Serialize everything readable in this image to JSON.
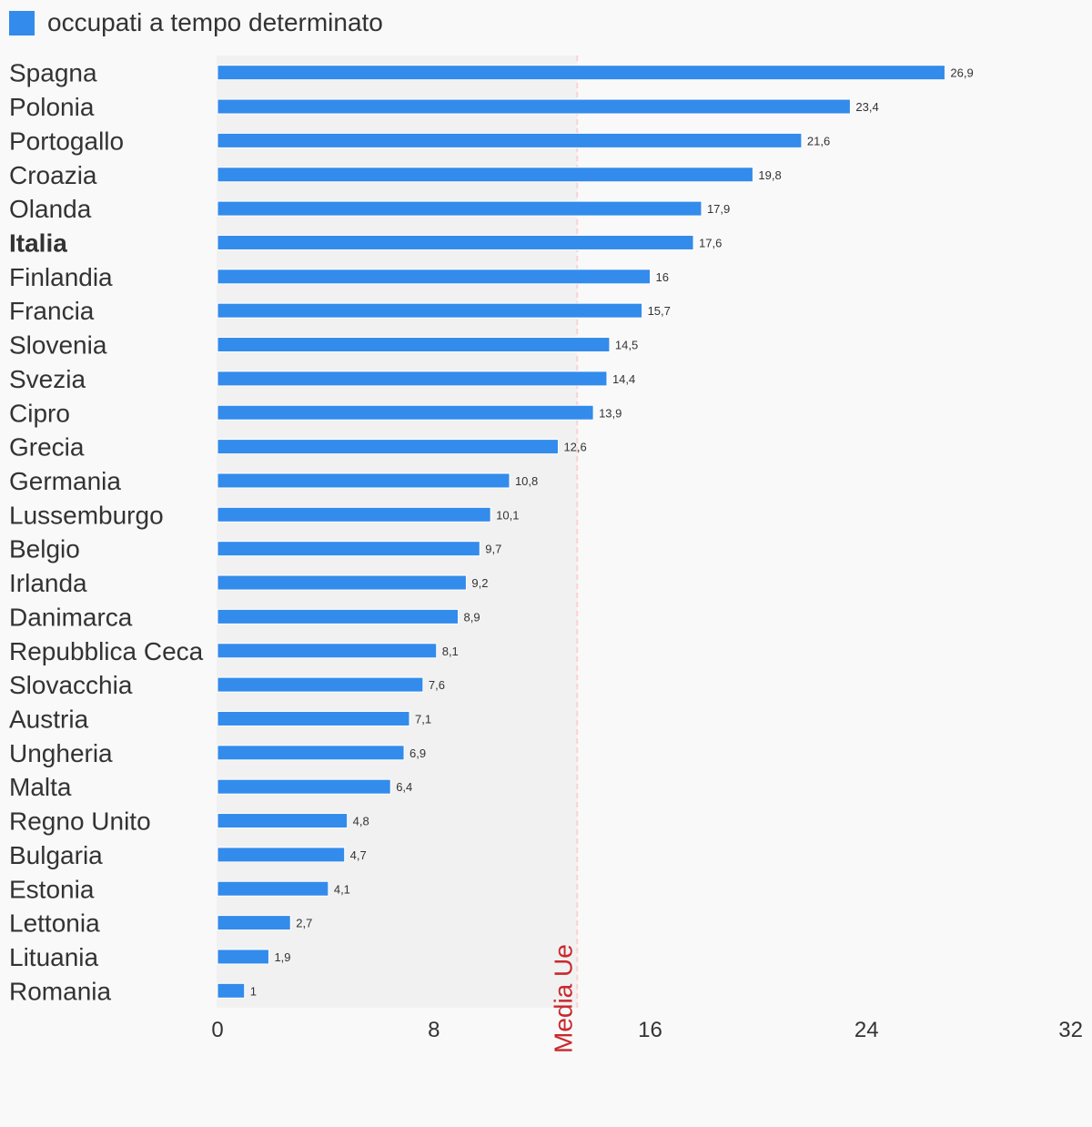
{
  "chart_data": {
    "type": "bar",
    "orientation": "horizontal",
    "title": "",
    "legend": [
      {
        "label": "occupati a tempo determinato",
        "color": "#338beb"
      }
    ],
    "legend_position": "top-left",
    "categories": [
      "Spagna",
      "Polonia",
      "Portogallo",
      "Croazia",
      "Olanda",
      "Italia",
      "Finlandia",
      "Francia",
      "Slovenia",
      "Svezia",
      "Cipro",
      "Grecia",
      "Germania",
      "Lussemburgo",
      "Belgio",
      "Irlanda",
      "Danimarca",
      "Repubblica Ceca",
      "Slovacchia",
      "Austria",
      "Ungheria",
      "Malta",
      "Regno Unito",
      "Bulgaria",
      "Estonia",
      "Lettonia",
      "Lituania",
      "Romania"
    ],
    "highlight_category": "Italia",
    "series": [
      {
        "name": "occupati a tempo determinato",
        "color": "#338beb",
        "values": [
          26.9,
          23.4,
          21.6,
          19.8,
          17.9,
          17.6,
          16,
          15.7,
          14.5,
          14.4,
          13.9,
          12.6,
          10.8,
          10.1,
          9.7,
          9.2,
          8.9,
          8.1,
          7.6,
          7.1,
          6.9,
          6.4,
          4.8,
          4.7,
          4.1,
          2.7,
          1.9,
          1
        ],
        "value_labels": [
          "26,9",
          "23,4",
          "21,6",
          "19,8",
          "17,9",
          "17,6",
          "16",
          "15,7",
          "14,5",
          "14,4",
          "13,9",
          "12,6",
          "10,8",
          "10,1",
          "9,7",
          "9,2",
          "8,9",
          "8,1",
          "7,6",
          "7,1",
          "6,9",
          "6,4",
          "4,8",
          "4,7",
          "4,1",
          "2,7",
          "1,9",
          "1"
        ]
      }
    ],
    "xlim": [
      0,
      32
    ],
    "xticks": [
      0,
      8,
      16,
      24,
      32
    ],
    "xtick_labels": [
      "0",
      "8",
      "16",
      "24",
      "32"
    ],
    "xlabel": "",
    "ylabel": "",
    "grid": false,
    "reference_line": {
      "label": "Media Ue",
      "value": 13.3,
      "color": "#c9282d",
      "shaded_band": [
        0,
        13.3
      ]
    }
  }
}
